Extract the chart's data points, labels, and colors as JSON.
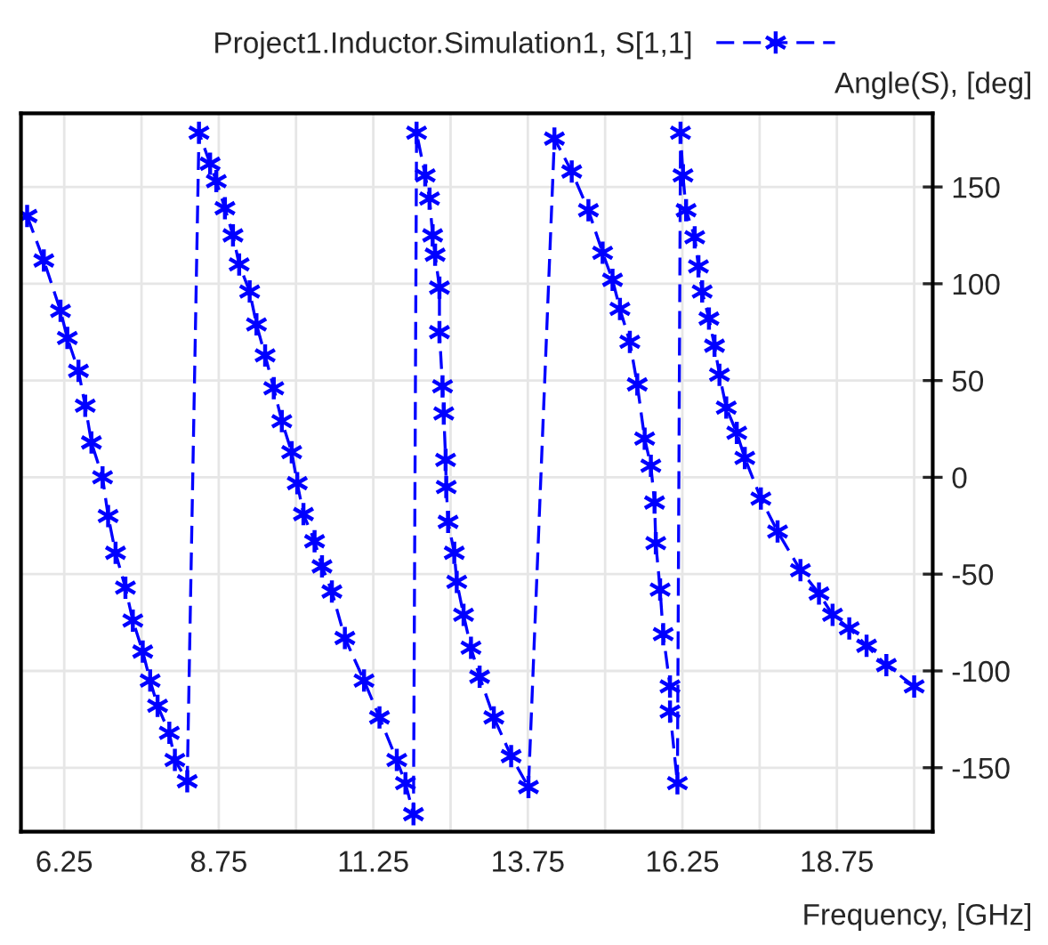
{
  "chart_data": {
    "type": "line",
    "xlabel": "Frequency, [GHz]",
    "ylabel": "Angle(S), [deg]",
    "series": [
      {
        "name": "Project1.Inductor.Simulation1, S[1,1]",
        "color": "#0000ff",
        "x": [
          5.65,
          5.92,
          6.19,
          6.3,
          6.48,
          6.59,
          6.69,
          6.87,
          6.96,
          7.08,
          7.24,
          7.36,
          7.52,
          7.64,
          7.76,
          7.95,
          8.04,
          8.24,
          8.43,
          8.61,
          8.71,
          8.85,
          8.98,
          9.08,
          9.25,
          9.36,
          9.5,
          9.64,
          9.77,
          9.93,
          10.02,
          10.12,
          10.3,
          10.42,
          10.58,
          10.79,
          11.1,
          11.35,
          11.63,
          11.77,
          11.9,
          11.95,
          12.09,
          12.16,
          12.21,
          12.25,
          12.32,
          12.32,
          12.37,
          12.39,
          12.42,
          12.43,
          12.46,
          12.56,
          12.6,
          12.71,
          12.83,
          12.97,
          13.2,
          13.48,
          13.76,
          14.18,
          14.46,
          14.73,
          14.96,
          15.12,
          15.24,
          15.4,
          15.52,
          15.64,
          15.74,
          15.8,
          15.82,
          15.89,
          15.94,
          16.05,
          16.05,
          16.17,
          16.22,
          16.26,
          16.31,
          16.45,
          16.51,
          16.57,
          16.68,
          16.77,
          16.85,
          16.96,
          17.13,
          17.26,
          17.52,
          17.79,
          18.16,
          18.46,
          18.68,
          18.95,
          19.23,
          19.55,
          20.0
        ],
        "values": [
          135,
          112,
          86,
          72,
          55,
          37,
          18,
          0,
          -20,
          -39,
          -57,
          -74,
          -90,
          -105,
          -118,
          -132,
          -146,
          -157,
          178,
          162,
          153,
          139,
          125,
          110,
          96,
          79,
          63,
          46,
          29,
          13,
          -3,
          -19,
          -33,
          -46,
          -59,
          -83,
          -105,
          -124,
          -146,
          -158,
          -174,
          178,
          156,
          144,
          125,
          115,
          98,
          75,
          47,
          33,
          9,
          -5,
          -23,
          -39,
          -54,
          -71,
          -88,
          -103,
          -124,
          -144,
          -160,
          175,
          158,
          138,
          116,
          102,
          87,
          70,
          48,
          20,
          6,
          -13,
          -34,
          -58,
          -81,
          -108,
          -121,
          -158,
          178,
          156,
          138,
          124,
          109,
          96,
          82,
          68,
          53,
          36,
          23,
          10,
          -11,
          -28,
          -48,
          -60,
          -71,
          -78,
          -87,
          -97,
          -108
        ]
      }
    ],
    "xlim": [
      5.55,
      20.3
    ],
    "ylim": [
      -183,
      188
    ],
    "xticks": [
      {
        "value": 6.25,
        "label": "6.25"
      },
      {
        "value": 7.5,
        "label": null
      },
      {
        "value": 8.75,
        "label": "8.75"
      },
      {
        "value": 10,
        "label": null
      },
      {
        "value": 11.25,
        "label": "11.25"
      },
      {
        "value": 12.5,
        "label": null
      },
      {
        "value": 13.75,
        "label": "13.75"
      },
      {
        "value": 15,
        "label": null
      },
      {
        "value": 16.25,
        "label": "16.25"
      },
      {
        "value": 17.5,
        "label": null
      },
      {
        "value": 18.75,
        "label": "18.75"
      },
      {
        "value": 20,
        "label": null
      }
    ],
    "yticks": [
      -150,
      -100,
      -50,
      0,
      50,
      100,
      150
    ],
    "grid": true,
    "legend": "top",
    "marker": "cross",
    "line_style": "dashed"
  }
}
